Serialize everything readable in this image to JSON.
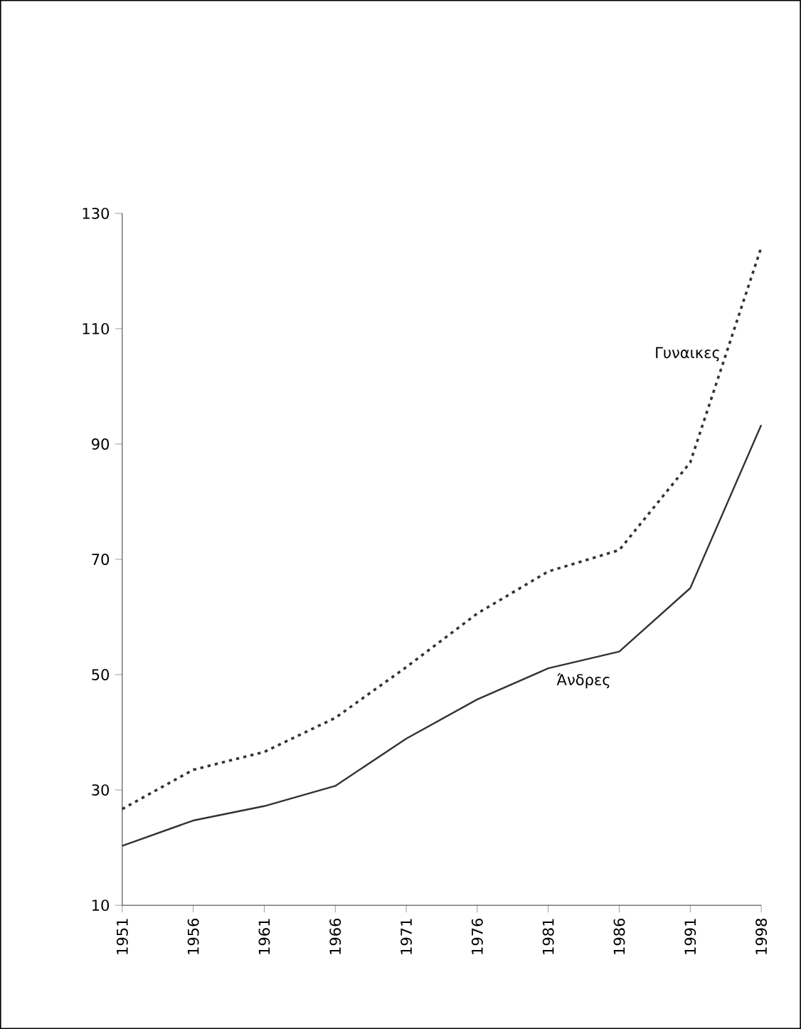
{
  "chart_data": {
    "type": "line",
    "categories": [
      "1951",
      "1956",
      "1961",
      "1966",
      "1971",
      "1976",
      "1981",
      "1986",
      "1991",
      "1998"
    ],
    "series": [
      {
        "name": "Γυναικες",
        "color": "#333333",
        "line_style": "dotted",
        "values": [
          26.7,
          33.5,
          36.6,
          42.5,
          51.3,
          60.6,
          67.9,
          71.6,
          86.8,
          124.1
        ]
      },
      {
        "name": "Άνδρες",
        "color": "#333333",
        "line_style": "solid",
        "values": [
          20.3,
          24.7,
          27.2,
          30.7,
          38.9,
          45.7,
          51.1,
          54.0,
          65.0,
          93.3
        ]
      }
    ],
    "ylim": [
      10,
      130
    ],
    "yticks": [
      10,
      30,
      50,
      70,
      90,
      110,
      130
    ],
    "grid": false,
    "legend": false,
    "marker": "none"
  }
}
